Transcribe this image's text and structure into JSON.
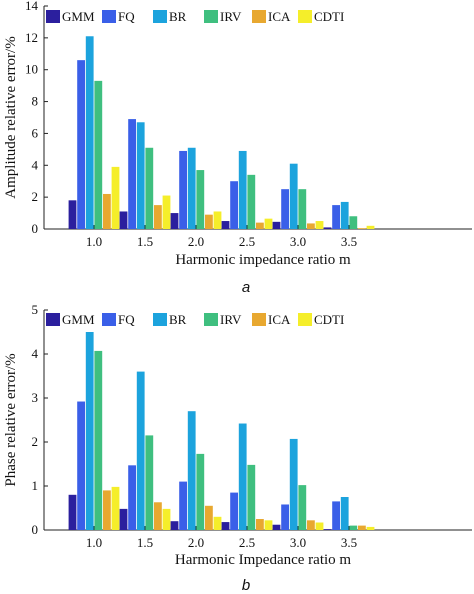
{
  "figure": {
    "colors": {
      "GMM": "#2b1f9e",
      "FQ": "#3a5fe8",
      "BR": "#1ca3dd",
      "IRV": "#3fbf7f",
      "ICA": "#e8a830",
      "CDTI": "#f5ee2a"
    }
  },
  "chart_data": [
    {
      "type": "bar",
      "caption": "a",
      "xlabel": "Harmonic impedance ratio m",
      "ylabel": "Amplitude relative error/%",
      "categories": [
        "1.0",
        "1.5",
        "2.0",
        "2.5",
        "3.0",
        "3.5"
      ],
      "ylim": [
        0,
        14
      ],
      "yticks": [
        0,
        2,
        4,
        6,
        8,
        10,
        12,
        14
      ],
      "legend_position": "top",
      "grid": false,
      "series": [
        {
          "name": "GMM",
          "values": [
            1.8,
            1.1,
            1.0,
            0.5,
            0.45,
            0.1
          ]
        },
        {
          "name": "FQ",
          "values": [
            10.6,
            6.9,
            4.9,
            3.0,
            2.5,
            1.5
          ]
        },
        {
          "name": "BR",
          "values": [
            12.1,
            6.7,
            5.1,
            4.9,
            4.1,
            1.7
          ]
        },
        {
          "name": "IRV",
          "values": [
            9.3,
            5.1,
            3.7,
            3.4,
            2.5,
            0.8
          ]
        },
        {
          "name": "ICA",
          "values": [
            2.2,
            1.5,
            0.9,
            0.4,
            0.35,
            0.05
          ]
        },
        {
          "name": "CDTI",
          "values": [
            3.9,
            2.1,
            1.1,
            0.65,
            0.5,
            0.2
          ]
        }
      ]
    },
    {
      "type": "bar",
      "caption": "b",
      "xlabel": "Harmonic Impedance ratio m",
      "ylabel": "Phase relative error/%",
      "categories": [
        "1.0",
        "1.5",
        "2.0",
        "2.5",
        "3.0",
        "3.5"
      ],
      "ylim": [
        0,
        5
      ],
      "yticks": [
        0,
        1,
        2,
        3,
        4,
        5
      ],
      "legend_position": "top",
      "grid": false,
      "series": [
        {
          "name": "GMM",
          "values": [
            0.8,
            0.48,
            0.2,
            0.18,
            0.12,
            0.02
          ]
        },
        {
          "name": "FQ",
          "values": [
            2.92,
            1.47,
            1.1,
            0.85,
            0.58,
            0.65
          ]
        },
        {
          "name": "BR",
          "values": [
            4.5,
            3.6,
            2.7,
            2.42,
            2.07,
            0.75
          ]
        },
        {
          "name": "IRV",
          "values": [
            4.07,
            2.15,
            1.73,
            1.48,
            1.02,
            0.1
          ]
        },
        {
          "name": "ICA",
          "values": [
            0.9,
            0.63,
            0.55,
            0.25,
            0.22,
            0.1
          ]
        },
        {
          "name": "CDTI",
          "values": [
            0.98,
            0.48,
            0.3,
            0.22,
            0.17,
            0.07
          ]
        }
      ]
    }
  ]
}
